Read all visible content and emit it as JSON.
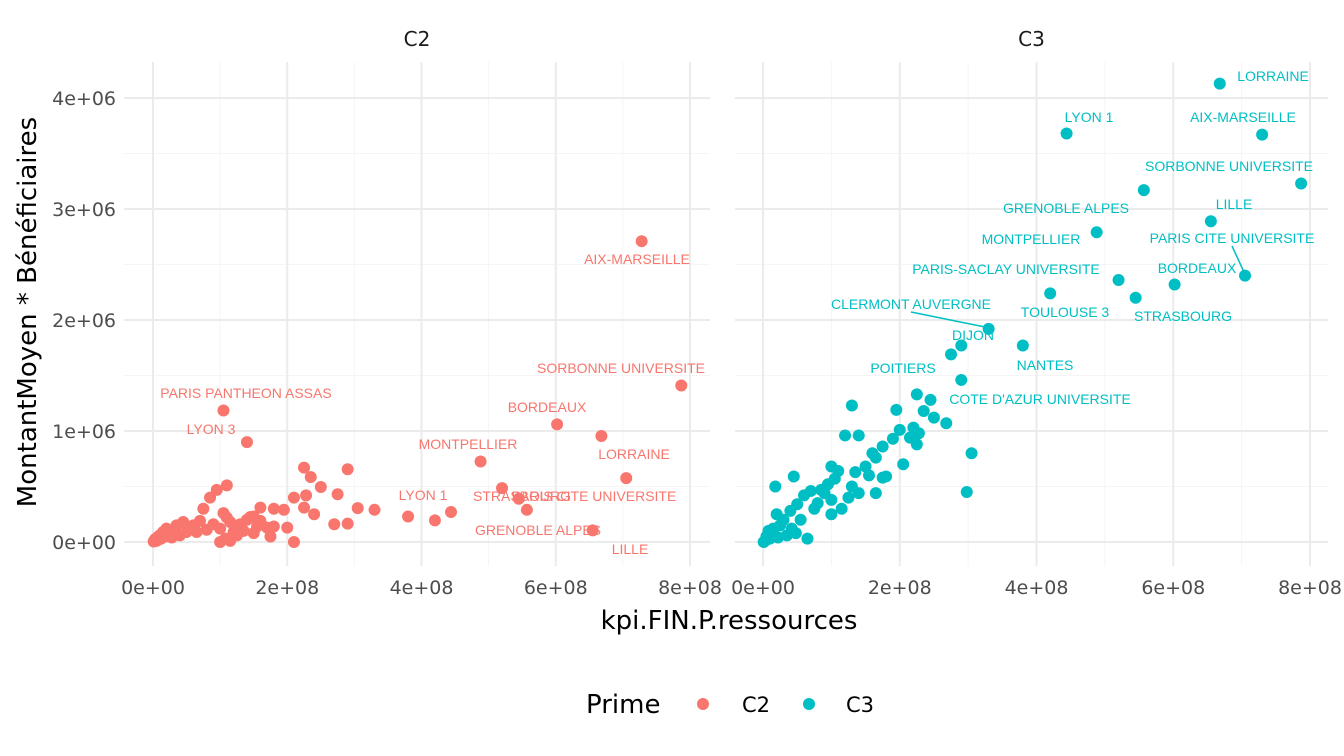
{
  "colors": {
    "C2": "#F8766D",
    "C3": "#00BFC4",
    "grid_major": "#ebebeb",
    "grid_minor": "#f5f5f5"
  },
  "legend": {
    "title": "Prime",
    "placement": "bottom",
    "entries": [
      "C2",
      "C3"
    ]
  },
  "chart_data": {
    "type": "scatter",
    "facet_by": "Prime",
    "xlabel": "kpi.FIN.P.ressources",
    "ylabel": "MontantMoyen * Bénéficiaires",
    "xlim": [
      -15000000,
      800000000
    ],
    "ylim": [
      -200000,
      4300000
    ],
    "x_ticks": [
      0,
      200000000,
      400000000,
      600000000,
      800000000
    ],
    "x_tick_labels": [
      "0e+00",
      "2e+08",
      "4e+08",
      "6e+08",
      "8e+08"
    ],
    "y_ticks": [
      0,
      1000000,
      2000000,
      3000000,
      4000000
    ],
    "y_tick_labels": [
      "0e+00",
      "1e+06",
      "2e+06",
      "3e+06",
      "4e+06"
    ],
    "grid": true,
    "panels": [
      {
        "facet": "C2",
        "color_key": "C2",
        "points": [
          {
            "x": 728000000,
            "y": 2710000
          },
          {
            "x": 787000000,
            "y": 1410000
          },
          {
            "x": 602000000,
            "y": 1060000
          },
          {
            "x": 668000000,
            "y": 955000
          },
          {
            "x": 105000000,
            "y": 1185000
          },
          {
            "x": 140000000,
            "y": 900000
          },
          {
            "x": 488000000,
            "y": 725000
          },
          {
            "x": 705000000,
            "y": 575000
          },
          {
            "x": 520000000,
            "y": 485000
          },
          {
            "x": 545000000,
            "y": 390000
          },
          {
            "x": 557000000,
            "y": 290000
          },
          {
            "x": 444000000,
            "y": 270000
          },
          {
            "x": 380000000,
            "y": 230000
          },
          {
            "x": 420000000,
            "y": 195000
          },
          {
            "x": 655000000,
            "y": 105000
          },
          {
            "x": 290000000,
            "y": 655000
          },
          {
            "x": 225000000,
            "y": 670000
          },
          {
            "x": 235000000,
            "y": 585000
          },
          {
            "x": 250000000,
            "y": 495000
          },
          {
            "x": 275000000,
            "y": 430000
          },
          {
            "x": 210000000,
            "y": 400000
          },
          {
            "x": 228000000,
            "y": 420000
          },
          {
            "x": 305000000,
            "y": 305000
          },
          {
            "x": 330000000,
            "y": 290000
          },
          {
            "x": 270000000,
            "y": 160000
          },
          {
            "x": 290000000,
            "y": 165000
          },
          {
            "x": 240000000,
            "y": 250000
          },
          {
            "x": 225000000,
            "y": 310000
          },
          {
            "x": 210000000,
            "y": 0
          },
          {
            "x": 200000000,
            "y": 130000
          },
          {
            "x": 180000000,
            "y": 300000
          },
          {
            "x": 195000000,
            "y": 290000
          },
          {
            "x": 160000000,
            "y": 310000
          },
          {
            "x": 145000000,
            "y": 225000
          },
          {
            "x": 160000000,
            "y": 190000
          },
          {
            "x": 170000000,
            "y": 130000
          },
          {
            "x": 175000000,
            "y": 50000
          },
          {
            "x": 150000000,
            "y": 230000
          },
          {
            "x": 110000000,
            "y": 510000
          },
          {
            "x": 95000000,
            "y": 470000
          },
          {
            "x": 85000000,
            "y": 400000
          },
          {
            "x": 75000000,
            "y": 300000
          },
          {
            "x": 70000000,
            "y": 190000
          },
          {
            "x": 60000000,
            "y": 150000
          },
          {
            "x": 55000000,
            "y": 120000
          },
          {
            "x": 50000000,
            "y": 90000
          },
          {
            "x": 45000000,
            "y": 180000
          },
          {
            "x": 40000000,
            "y": 60000
          },
          {
            "x": 35000000,
            "y": 150000
          },
          {
            "x": 30000000,
            "y": 110000
          },
          {
            "x": 28000000,
            "y": 40000
          },
          {
            "x": 25000000,
            "y": 80000
          },
          {
            "x": 20000000,
            "y": 120000
          },
          {
            "x": 18000000,
            "y": 50000
          },
          {
            "x": 15000000,
            "y": 90000
          },
          {
            "x": 12000000,
            "y": 30000
          },
          {
            "x": 10000000,
            "y": 60000
          },
          {
            "x": 8000000,
            "y": 20000
          },
          {
            "x": 6000000,
            "y": 40000
          },
          {
            "x": 5000000,
            "y": 10000
          },
          {
            "x": 3000000,
            "y": 25000
          },
          {
            "x": 1000000,
            "y": 5000
          },
          {
            "x": 90000000,
            "y": 160000
          },
          {
            "x": 100000000,
            "y": 120000
          },
          {
            "x": 105000000,
            "y": 260000
          },
          {
            "x": 110000000,
            "y": 220000
          },
          {
            "x": 115000000,
            "y": 180000
          },
          {
            "x": 120000000,
            "y": 90000
          },
          {
            "x": 108000000,
            "y": 30000
          },
          {
            "x": 125000000,
            "y": 60000
          },
          {
            "x": 130000000,
            "y": 160000
          },
          {
            "x": 135000000,
            "y": 100000
          },
          {
            "x": 140000000,
            "y": 200000
          },
          {
            "x": 150000000,
            "y": 80000
          },
          {
            "x": 155000000,
            "y": 140000
          },
          {
            "x": 180000000,
            "y": 140000
          },
          {
            "x": 100000000,
            "y": 0
          },
          {
            "x": 115000000,
            "y": 10000
          },
          {
            "x": 80000000,
            "y": 110000
          },
          {
            "x": 65000000,
            "y": 90000
          }
        ],
        "labels": [
          "AIX-MARSEILLE",
          "SORBONNE UNIVERSITE",
          "PARIS PANTHEON ASSAS",
          "BORDEAUX",
          "LYON 3",
          "MONTPELLIER",
          "LORRAINE",
          "LYON 1",
          "STRASBOURG",
          "PARIS CITE UNIVERSITE",
          "GRENOBLE ALPES",
          "LILLE"
        ]
      },
      {
        "facet": "C3",
        "color_key": "C3",
        "points": [
          {
            "x": 668000000,
            "y": 4130000
          },
          {
            "x": 444000000,
            "y": 3680000
          },
          {
            "x": 730000000,
            "y": 3670000
          },
          {
            "x": 557000000,
            "y": 3170000
          },
          {
            "x": 787000000,
            "y": 3230000
          },
          {
            "x": 655000000,
            "y": 2890000
          },
          {
            "x": 488000000,
            "y": 2790000
          },
          {
            "x": 705000000,
            "y": 2400000
          },
          {
            "x": 520000000,
            "y": 2360000
          },
          {
            "x": 602000000,
            "y": 2320000
          },
          {
            "x": 420000000,
            "y": 2240000
          },
          {
            "x": 545000000,
            "y": 2200000
          },
          {
            "x": 330000000,
            "y": 1920000
          },
          {
            "x": 290000000,
            "y": 1770000
          },
          {
            "x": 380000000,
            "y": 1770000
          },
          {
            "x": 275000000,
            "y": 1690000
          },
          {
            "x": 290000000,
            "y": 1460000
          },
          {
            "x": 225000000,
            "y": 1330000
          },
          {
            "x": 245000000,
            "y": 1280000
          },
          {
            "x": 305000000,
            "y": 800000
          },
          {
            "x": 298000000,
            "y": 450000
          },
          {
            "x": 130000000,
            "y": 1230000
          },
          {
            "x": 195000000,
            "y": 1190000
          },
          {
            "x": 235000000,
            "y": 1180000
          },
          {
            "x": 250000000,
            "y": 1120000
          },
          {
            "x": 268000000,
            "y": 1070000
          },
          {
            "x": 220000000,
            "y": 1030000
          },
          {
            "x": 200000000,
            "y": 1010000
          },
          {
            "x": 228000000,
            "y": 980000
          },
          {
            "x": 215000000,
            "y": 940000
          },
          {
            "x": 190000000,
            "y": 930000
          },
          {
            "x": 175000000,
            "y": 860000
          },
          {
            "x": 140000000,
            "y": 960000
          },
          {
            "x": 120000000,
            "y": 960000
          },
          {
            "x": 225000000,
            "y": 880000
          },
          {
            "x": 160000000,
            "y": 800000
          },
          {
            "x": 165000000,
            "y": 760000
          },
          {
            "x": 205000000,
            "y": 700000
          },
          {
            "x": 150000000,
            "y": 680000
          },
          {
            "x": 100000000,
            "y": 680000
          },
          {
            "x": 110000000,
            "y": 640000
          },
          {
            "x": 155000000,
            "y": 600000
          },
          {
            "x": 135000000,
            "y": 630000
          },
          {
            "x": 180000000,
            "y": 590000
          },
          {
            "x": 175000000,
            "y": 580000
          },
          {
            "x": 105000000,
            "y": 570000
          },
          {
            "x": 45000000,
            "y": 590000
          },
          {
            "x": 95000000,
            "y": 520000
          },
          {
            "x": 85000000,
            "y": 470000
          },
          {
            "x": 70000000,
            "y": 460000
          },
          {
            "x": 130000000,
            "y": 500000
          },
          {
            "x": 140000000,
            "y": 440000
          },
          {
            "x": 165000000,
            "y": 440000
          },
          {
            "x": 125000000,
            "y": 400000
          },
          {
            "x": 100000000,
            "y": 380000
          },
          {
            "x": 60000000,
            "y": 420000
          },
          {
            "x": 80000000,
            "y": 350000
          },
          {
            "x": 50000000,
            "y": 340000
          },
          {
            "x": 75000000,
            "y": 300000
          },
          {
            "x": 100000000,
            "y": 250000
          },
          {
            "x": 115000000,
            "y": 300000
          },
          {
            "x": 40000000,
            "y": 280000
          },
          {
            "x": 55000000,
            "y": 200000
          },
          {
            "x": 42000000,
            "y": 120000
          },
          {
            "x": 30000000,
            "y": 200000
          },
          {
            "x": 25000000,
            "y": 150000
          },
          {
            "x": 18000000,
            "y": 500000
          },
          {
            "x": 20000000,
            "y": 250000
          },
          {
            "x": 15000000,
            "y": 120000
          },
          {
            "x": 12000000,
            "y": 80000
          },
          {
            "x": 10000000,
            "y": 30000
          },
          {
            "x": 8000000,
            "y": 100000
          },
          {
            "x": 5000000,
            "y": 50000
          },
          {
            "x": 3000000,
            "y": 10000
          },
          {
            "x": 1000000,
            "y": 0
          },
          {
            "x": 22000000,
            "y": 40000
          },
          {
            "x": 35000000,
            "y": 60000
          },
          {
            "x": 65000000,
            "y": 30000
          },
          {
            "x": 48000000,
            "y": 80000
          },
          {
            "x": 90000000,
            "y": 440000
          }
        ],
        "labels": [
          "LORRAINE",
          "LYON 1",
          "AIX-MARSEILLE",
          "SORBONNE UNIVERSITE",
          "GRENOBLE ALPES",
          "LILLE",
          "MONTPELLIER",
          "PARIS CITE UNIVERSITE",
          "PARIS-SACLAY UNIVERSITE",
          "BORDEAUX",
          "CLERMONT AUVERGNE",
          "TOULOUSE 3",
          "STRASBOURG",
          "DIJON",
          "NANTES",
          "POITIERS",
          "COTE D'AZUR UNIVERSITE"
        ]
      }
    ]
  }
}
